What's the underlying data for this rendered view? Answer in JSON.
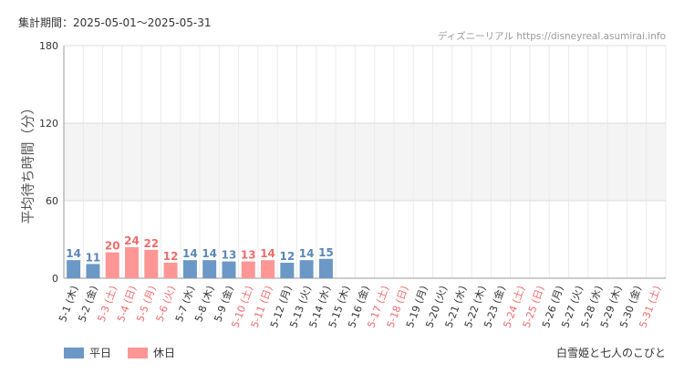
{
  "header": {
    "period": "集計期間：2025-05-01～2025-05-31",
    "credit": "ディズニーリアル https://disneyreal.asumirai.info"
  },
  "footer": {
    "attraction": "白雪姫と七人のこびと"
  },
  "legend": [
    {
      "label": "平日",
      "color": "#6b98c6"
    },
    {
      "label": "休日",
      "color": "#ff9696"
    }
  ],
  "colors": {
    "weekday": "#6b98c6",
    "holiday": "#ff9696",
    "weekday_text": "#5b86b8",
    "holiday_text": "#f06b6b",
    "band": "#f4f4f4"
  },
  "chart_data": {
    "type": "bar",
    "ylabel": "平均待ち時間（分）",
    "ylim": [
      0,
      180
    ],
    "yticks": [
      0,
      60,
      120,
      180
    ],
    "bands": [
      [
        120,
        180
      ],
      [
        60,
        120
      ]
    ],
    "categories": [
      "5-1 (木)",
      "5-2 (金)",
      "5-3 (土)",
      "5-4 (日)",
      "5-5 (月)",
      "5-6 (火)",
      "5-7 (水)",
      "5-8 (木)",
      "5-9 (金)",
      "5-10 (土)",
      "5-11 (日)",
      "5-12 (月)",
      "5-13 (火)",
      "5-14 (水)",
      "5-15 (木)",
      "5-16 (金)",
      "5-17 (土)",
      "5-18 (日)",
      "5-19 (月)",
      "5-20 (火)",
      "5-21 (水)",
      "5-22 (木)",
      "5-23 (金)",
      "5-24 (土)",
      "5-25 (日)",
      "5-26 (月)",
      "5-27 (火)",
      "5-28 (水)",
      "5-29 (木)",
      "5-30 (金)",
      "5-31 (土)"
    ],
    "holiday": [
      false,
      false,
      true,
      true,
      true,
      true,
      false,
      false,
      false,
      true,
      true,
      false,
      false,
      false,
      false,
      false,
      true,
      true,
      false,
      false,
      false,
      false,
      false,
      true,
      true,
      false,
      false,
      false,
      false,
      false,
      true
    ],
    "values": [
      14,
      11,
      20,
      24,
      22,
      12,
      14,
      14,
      13,
      13,
      14,
      12,
      14,
      15,
      null,
      null,
      null,
      null,
      null,
      null,
      null,
      null,
      null,
      null,
      null,
      null,
      null,
      null,
      null,
      null,
      null
    ]
  }
}
